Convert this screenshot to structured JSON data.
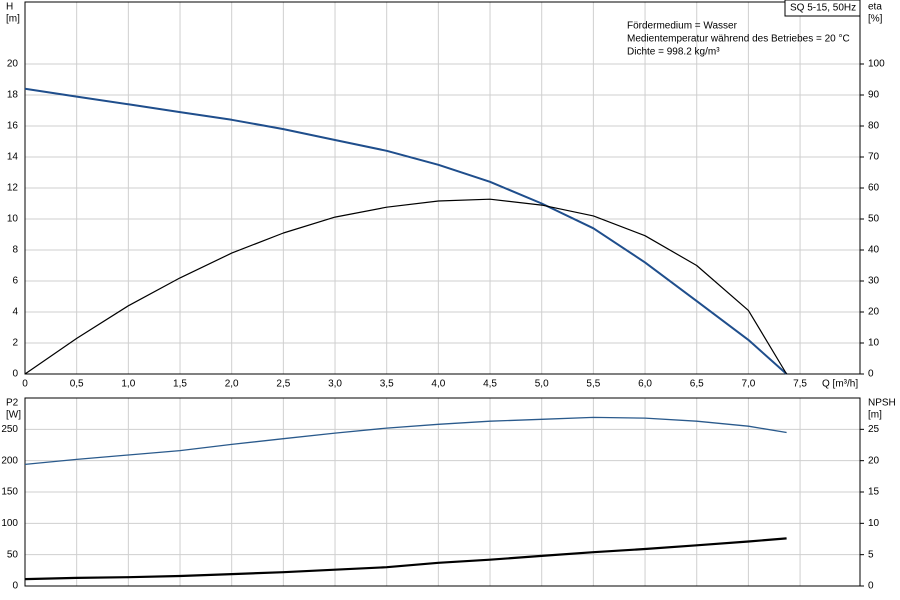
{
  "chart_data": [
    {
      "type": "line",
      "title": "SQ 5-15, 50Hz",
      "annotations": [
        "Fördermedium = Wasser",
        "Medientemperatur während des Betriebes = 20 °C",
        "Dichte = 998.2 kg/m³"
      ],
      "xlabel": "Q [m³/h]",
      "ylabel": "H",
      "yunit": "[m]",
      "y2label": "eta",
      "y2unit": "[%]",
      "xlim": [
        0,
        8.08
      ],
      "ylim": [
        0,
        24
      ],
      "y2lim": [
        0,
        120
      ],
      "grid": true,
      "xticks": [
        0,
        {
          "value": 0.5,
          "label": "0,5"
        },
        {
          "value": 1.0,
          "label": "1,0"
        },
        {
          "value": 1.5,
          "label": "1,5"
        },
        {
          "value": 2.0,
          "label": "2,0"
        },
        {
          "value": 2.5,
          "label": "2,5"
        },
        {
          "value": 3.0,
          "label": "3,0"
        },
        {
          "value": 3.5,
          "label": "3,5"
        },
        {
          "value": 4.0,
          "label": "4,0"
        },
        {
          "value": 4.5,
          "label": "4,5"
        },
        {
          "value": 5.0,
          "label": "5,0"
        },
        {
          "value": 5.5,
          "label": "5,5"
        },
        {
          "value": 6.0,
          "label": "6,0"
        },
        {
          "value": 6.5,
          "label": "6,5"
        },
        {
          "value": 7.0,
          "label": "7,0"
        },
        {
          "value": 7.5,
          "label": "7,5"
        }
      ],
      "yticks": [
        0,
        2,
        4,
        6,
        8,
        10,
        12,
        14,
        16,
        18,
        20
      ],
      "y2ticks": [
        0,
        10,
        20,
        30,
        40,
        50,
        60,
        70,
        80,
        90,
        100
      ],
      "x": [
        0,
        0.5,
        1,
        1.5,
        2,
        2.5,
        3,
        3.5,
        4,
        4.5,
        5,
        5.5,
        6,
        6.5,
        7,
        7.37
      ],
      "series": [
        {
          "name": "H",
          "color": "#1f4e8c",
          "width": 2,
          "values": [
            18.4,
            17.9,
            17.4,
            16.9,
            16.4,
            15.8,
            15.1,
            14.4,
            13.5,
            12.4,
            11.0,
            9.4,
            7.2,
            4.7,
            2.2,
            0
          ]
        },
        {
          "name": "eta",
          "color": "#000000",
          "width": 1.2,
          "axis": "y2",
          "values": [
            0,
            11.5,
            22,
            31,
            39,
            45.5,
            50.6,
            53.8,
            55.8,
            56.4,
            54.5,
            51,
            44.6,
            35,
            20.5,
            0
          ]
        }
      ]
    },
    {
      "type": "line",
      "ylabel": "P2",
      "yunit": "[W]",
      "y2label": "NPSH",
      "y2unit": "[m]",
      "xlim": [
        0,
        8.08
      ],
      "ylim": [
        0,
        300
      ],
      "y2lim": [
        0,
        30
      ],
      "grid": true,
      "xticks": [
        0,
        0.5,
        1,
        1.5,
        2,
        2.5,
        3,
        3.5,
        4,
        4.5,
        5,
        5.5,
        6,
        6.5,
        7,
        7.5
      ],
      "yticks": [
        0,
        50,
        100,
        150,
        200,
        250
      ],
      "y2ticks": [
        0,
        5,
        10,
        15,
        20,
        25
      ],
      "x": [
        0,
        0.5,
        1,
        1.5,
        2,
        2.5,
        3,
        3.5,
        4,
        4.5,
        5,
        5.5,
        6,
        6.5,
        7,
        7.37
      ],
      "series": [
        {
          "name": "P2",
          "color": "#2a5a8c",
          "width": 1.3,
          "values": [
            194,
            202,
            209,
            216,
            226,
            235,
            244,
            252,
            258,
            263,
            266,
            269,
            268,
            263,
            255,
            245
          ]
        },
        {
          "name": "NPSH",
          "color": "#000000",
          "width": 2.2,
          "axis": "y2",
          "values": [
            1.1,
            1.3,
            1.4,
            1.6,
            1.9,
            2.2,
            2.6,
            3.0,
            3.7,
            4.2,
            4.8,
            5.4,
            5.9,
            6.5,
            7.1,
            7.6
          ]
        }
      ]
    }
  ]
}
